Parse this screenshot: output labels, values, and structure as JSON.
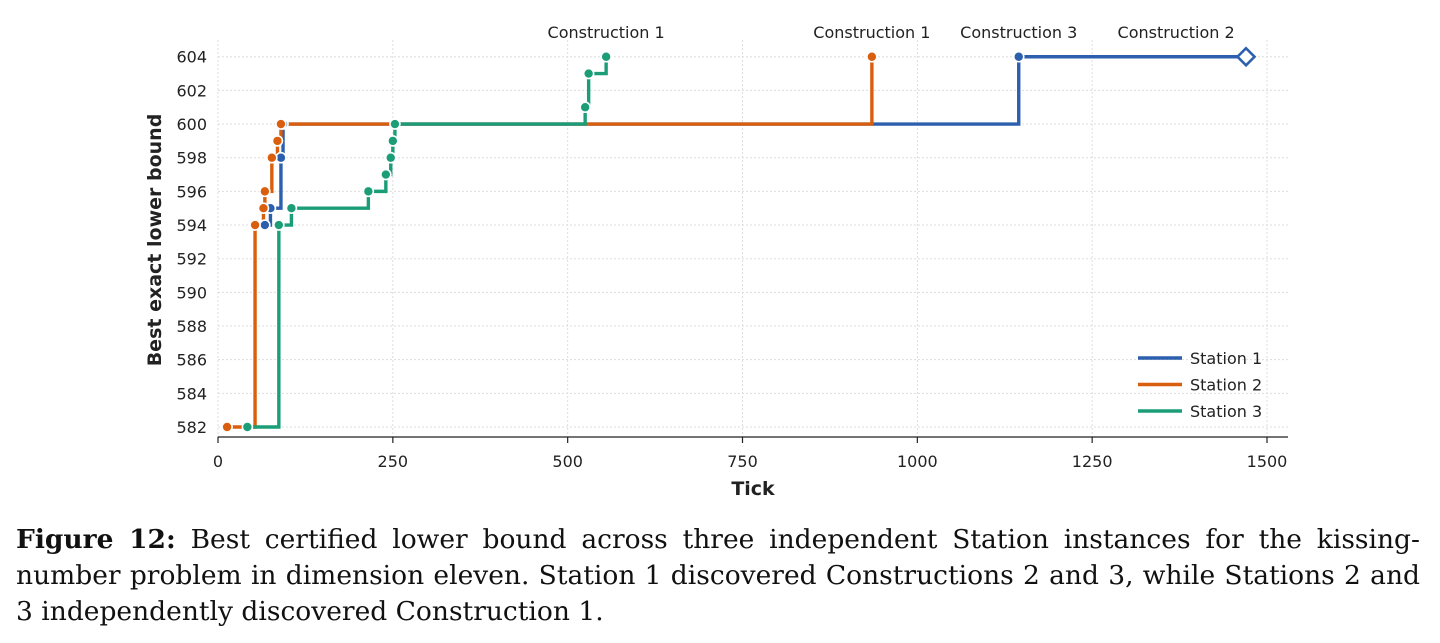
{
  "chart_data": {
    "type": "line",
    "step": true,
    "xlabel": "Tick",
    "ylabel": "Best exact lower bound",
    "xlim": [
      0,
      1530
    ],
    "ylim": [
      581.3,
      605
    ],
    "xticks": [
      0,
      250,
      500,
      750,
      1000,
      1250,
      1500
    ],
    "yticks": [
      582,
      584,
      586,
      588,
      590,
      592,
      594,
      596,
      598,
      600,
      602,
      604
    ],
    "grid": true,
    "legend_position": "lower-right",
    "series": [
      {
        "name": "Station 1",
        "color": "#2c5fad",
        "points": [
          [
            67,
            594
          ],
          [
            75,
            595
          ],
          [
            90,
            598
          ],
          [
            93,
            600
          ],
          [
            1145,
            604
          ]
        ],
        "extend_to": 1470,
        "final_marker": "open-diamond"
      },
      {
        "name": "Station 2",
        "color": "#d95f0e",
        "points": [
          [
            13,
            582
          ],
          [
            53,
            594
          ],
          [
            65,
            595
          ],
          [
            67,
            596
          ],
          [
            77,
            598
          ],
          [
            85,
            599
          ],
          [
            90,
            600
          ],
          [
            935,
            604
          ]
        ]
      },
      {
        "name": "Station 3",
        "color": "#1b9e77",
        "points": [
          [
            42,
            582
          ],
          [
            87,
            594
          ],
          [
            105,
            595
          ],
          [
            215,
            596
          ],
          [
            240,
            597
          ],
          [
            247,
            598
          ],
          [
            250,
            599
          ],
          [
            253,
            600
          ],
          [
            525,
            601
          ],
          [
            530,
            603
          ],
          [
            555,
            604
          ]
        ]
      }
    ],
    "annotations": [
      {
        "text": "Construction 1",
        "x": 555
      },
      {
        "text": "Construction 1",
        "x": 935
      },
      {
        "text": "Construction 3",
        "x": 1145
      },
      {
        "text": "Construction 2",
        "x": 1370
      }
    ]
  },
  "caption": {
    "label": "Figure 12:",
    "text": "Best certified lower bound across three independent Station instances for the kissing-number problem in dimension eleven. Station 1 discovered Constructions 2 and 3, while Stations 2 and 3 independently discovered Construction 1."
  }
}
